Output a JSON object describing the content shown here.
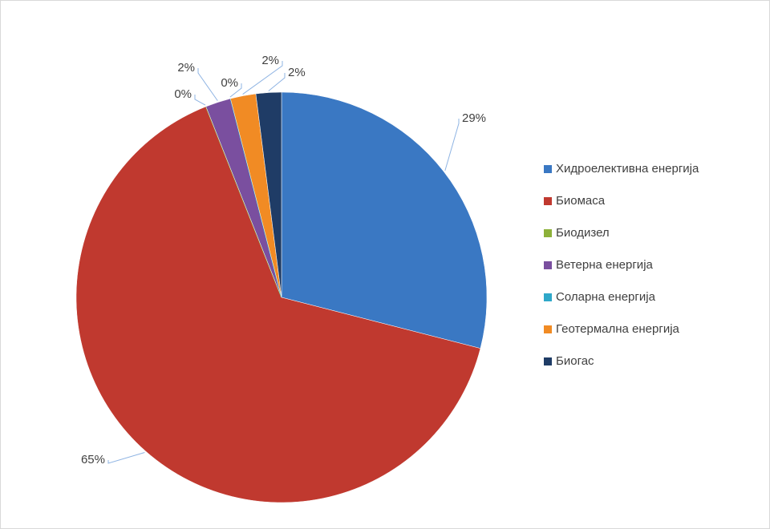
{
  "chart_data": {
    "type": "pie",
    "categories": [
      "Хидроелективна енергија",
      "Биомаса",
      "Биодизел",
      "Ветерна енергија",
      "Соларна енергија",
      "Геотермална енергија",
      "Биогас"
    ],
    "values": [
      29,
      65,
      0,
      2,
      0,
      2,
      2
    ],
    "value_labels": [
      "29%",
      "65%",
      "0%",
      "2%",
      "0%",
      "2%",
      "2%"
    ],
    "colors": [
      "#3a78c3",
      "#c0392f",
      "#8db13a",
      "#7a4f9f",
      "#2fa8c9",
      "#f18b24",
      "#1f3c66"
    ],
    "legend": "right"
  }
}
